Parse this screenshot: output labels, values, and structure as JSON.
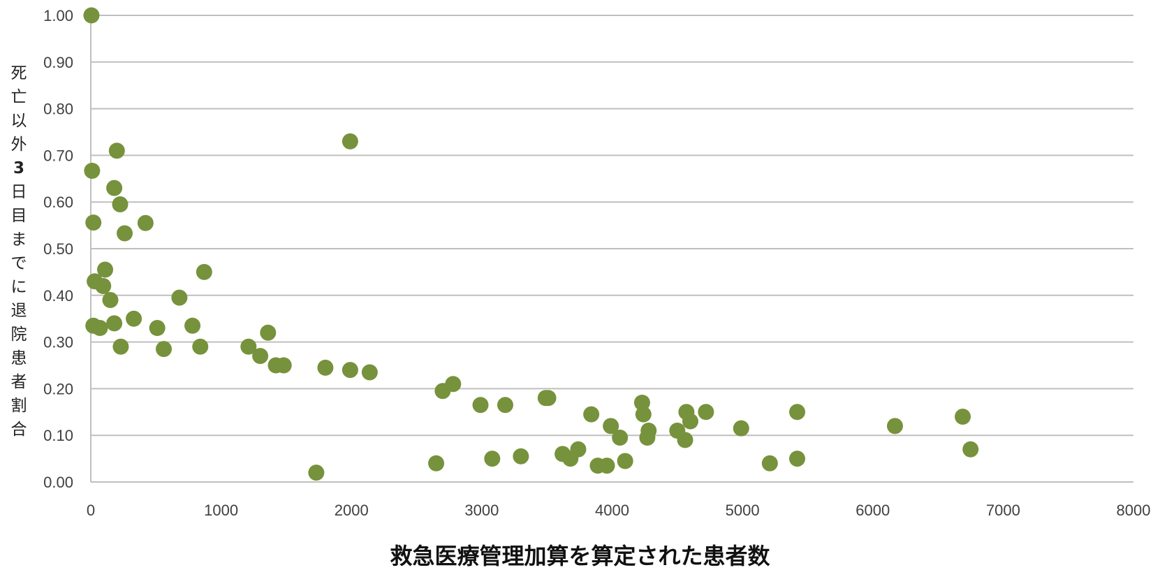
{
  "chart_data": {
    "type": "scatter",
    "title": "",
    "xlabel": "救急医療管理加算を算定された患者数",
    "ylabel": "死亡以外3日目までに退院患者割合",
    "xlim": [
      0,
      8000
    ],
    "ylim": [
      0,
      1.0
    ],
    "x_ticks": [
      "0",
      "1000",
      "2000",
      "3000",
      "4000",
      "5000",
      "6000",
      "7000",
      "8000"
    ],
    "y_ticks": [
      "0.00",
      "0.10",
      "0.20",
      "0.30",
      "0.40",
      "0.50",
      "0.60",
      "0.70",
      "0.80",
      "0.90",
      "1.00"
    ],
    "grid": "horizontal",
    "legend": "none",
    "marker_color": "#76923c",
    "points": [
      [
        5,
        1.0
      ],
      [
        10,
        0.667
      ],
      [
        20,
        0.556
      ],
      [
        200,
        0.71
      ],
      [
        180,
        0.63
      ],
      [
        225,
        0.595
      ],
      [
        260,
        0.533
      ],
      [
        420,
        0.555
      ],
      [
        1990,
        0.73
      ],
      [
        870,
        0.45
      ],
      [
        110,
        0.455
      ],
      [
        30,
        0.43
      ],
      [
        95,
        0.42
      ],
      [
        150,
        0.39
      ],
      [
        680,
        0.395
      ],
      [
        330,
        0.35
      ],
      [
        180,
        0.34
      ],
      [
        20,
        0.335
      ],
      [
        70,
        0.33
      ],
      [
        510,
        0.33
      ],
      [
        780,
        0.335
      ],
      [
        1360,
        0.32
      ],
      [
        230,
        0.29
      ],
      [
        560,
        0.285
      ],
      [
        840,
        0.29
      ],
      [
        1210,
        0.29
      ],
      [
        1300,
        0.27
      ],
      [
        1420,
        0.25
      ],
      [
        1480,
        0.25
      ],
      [
        1800,
        0.245
      ],
      [
        1990,
        0.24
      ],
      [
        2140,
        0.235
      ],
      [
        2780,
        0.21
      ],
      [
        2700,
        0.195
      ],
      [
        3490,
        0.18
      ],
      [
        3510,
        0.18
      ],
      [
        2990,
        0.165
      ],
      [
        3180,
        0.165
      ],
      [
        4230,
        0.17
      ],
      [
        4570,
        0.15
      ],
      [
        4720,
        0.15
      ],
      [
        5420,
        0.15
      ],
      [
        6690,
        0.14
      ],
      [
        3840,
        0.145
      ],
      [
        4240,
        0.145
      ],
      [
        4600,
        0.13
      ],
      [
        4990,
        0.115
      ],
      [
        6170,
        0.12
      ],
      [
        4280,
        0.11
      ],
      [
        4500,
        0.11
      ],
      [
        3990,
        0.12
      ],
      [
        4060,
        0.095
      ],
      [
        4270,
        0.095
      ],
      [
        4560,
        0.09
      ],
      [
        3740,
        0.07
      ],
      [
        3620,
        0.06
      ],
      [
        6750,
        0.07
      ],
      [
        5420,
        0.05
      ],
      [
        5210,
        0.04
      ],
      [
        4100,
        0.045
      ],
      [
        3890,
        0.035
      ],
      [
        3960,
        0.035
      ],
      [
        3680,
        0.05
      ],
      [
        3300,
        0.055
      ],
      [
        2650,
        0.04
      ],
      [
        1730,
        0.02
      ],
      [
        3080,
        0.05
      ]
    ]
  }
}
